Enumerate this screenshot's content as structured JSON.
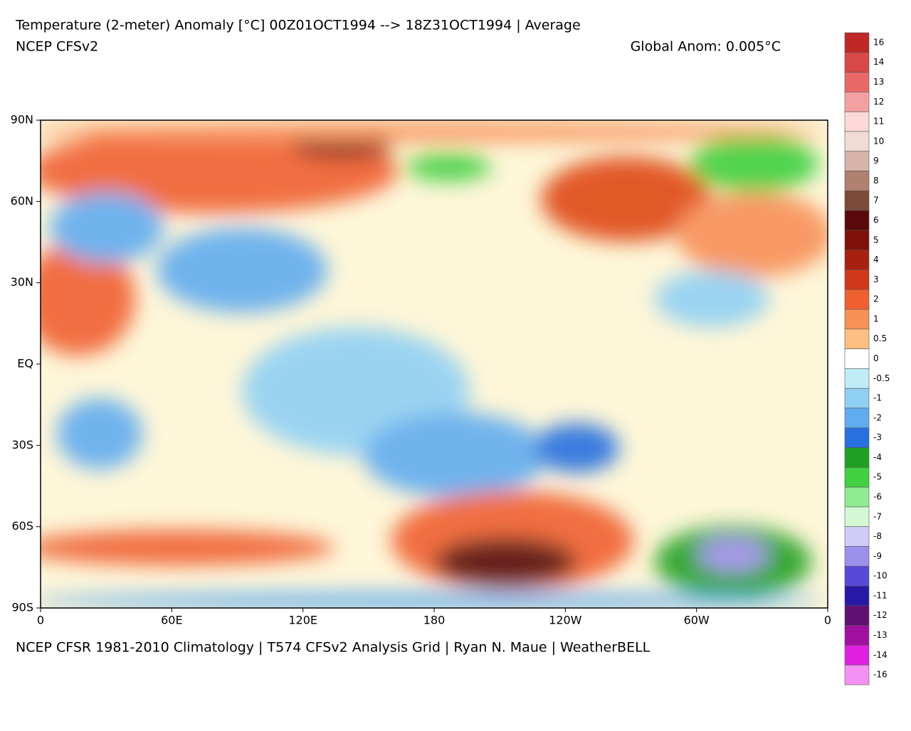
{
  "header": {
    "title": "Temperature (2-meter) Anomaly  [°C] 00Z01OCT1994 --> 18Z31OCT1994 | Average",
    "model": "NCEP CFSv2",
    "global_anom": "Global Anom: 0.005°C"
  },
  "map": {
    "lat_labels": [
      "90N",
      "60N",
      "30N",
      "EQ",
      "30S",
      "60S",
      "90S"
    ],
    "lon_labels": [
      "0",
      "60E",
      "120E",
      "180",
      "120W",
      "60W",
      "0"
    ]
  },
  "colorbar": {
    "labels": [
      "16",
      "14",
      "13",
      "12",
      "11",
      "10",
      "9",
      "8",
      "7",
      "6",
      "5",
      "4",
      "3",
      "2",
      "1",
      "0.5",
      "0",
      "-0.5",
      "-1",
      "-2",
      "-3",
      "-4",
      "-5",
      "-6",
      "-7",
      "-8",
      "-9",
      "-10",
      "-11",
      "-12",
      "-13",
      "-14",
      "-16"
    ],
    "colors": [
      "#c02828",
      "#d84848",
      "#e86868",
      "#f4a0a0",
      "#fcd8d8",
      "#f0dcd4",
      "#d8b4a8",
      "#b08070",
      "#7c4a38",
      "#5a0808",
      "#801008",
      "#a82010",
      "#d03818",
      "#f06030",
      "#f89058",
      "#fcc080",
      "#ffffff",
      "#c0ecf8",
      "#90d0f4",
      "#60acf0",
      "#2870e0",
      "#20a020",
      "#40d040",
      "#90ec90",
      "#d4f8d4",
      "#d0ccf8",
      "#9c90ec",
      "#5848d8",
      "#2818a8",
      "#601070",
      "#a010a0",
      "#e020e0",
      "#f490f4"
    ]
  },
  "footer": "NCEP CFSR 1981-2010 Climatology | T574 CFSv2 Analysis Grid | Ryan N. Maue | WeatherBELL"
}
